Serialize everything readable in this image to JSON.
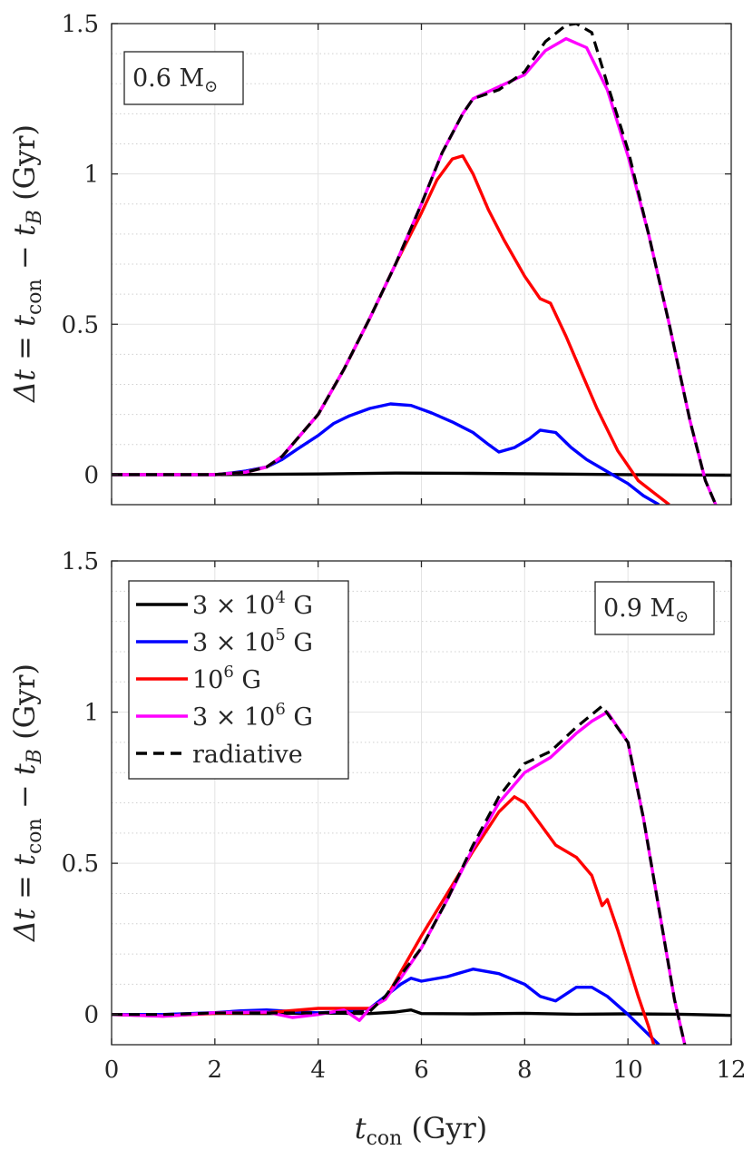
{
  "chart_data": {
    "type": "line",
    "shared": {
      "xlabel": "t_con (Gyr)",
      "xlabel_main": "t",
      "xlabel_sub": "con",
      "xlabel_unit": "(Gyr)",
      "ylabel": "Δt = t_con − t_B (Gyr)",
      "ylabel_parts": {
        "lhs": "Δt = t",
        "sub1": "con",
        "mid": " − t",
        "sub2": "B",
        "unit": " (Gyr)"
      },
      "xlim": [
        0,
        12
      ],
      "ylim": [
        -0.1,
        1.5
      ],
      "xticks": [
        0,
        2,
        4,
        6,
        8,
        10,
        12
      ],
      "xtick_labels": [
        "0",
        "2",
        "4",
        "6",
        "8",
        "10",
        "12"
      ],
      "yticks": [
        0,
        0.5,
        1,
        1.5
      ],
      "ytick_labels": [
        "0",
        "0.5",
        "1",
        "1.5"
      ],
      "minor_y_step": 0.1,
      "grid": true,
      "colors": {
        "3e4": "#000000",
        "3e5": "#0000ff",
        "1e6": "#ff0000",
        "3e6": "#ff00ff",
        "radiative": "#000000"
      }
    },
    "legend": {
      "placement": "top-left of bottom panel",
      "entries": [
        {
          "key": "3e4",
          "base": "3 × 10",
          "exp": "4",
          "unit": " G"
        },
        {
          "key": "3e5",
          "base": "3 × 10",
          "exp": "5",
          "unit": " G"
        },
        {
          "key": "1e6",
          "base": "10",
          "exp": "6",
          "unit": " G"
        },
        {
          "key": "3e6",
          "base": "3 × 10",
          "exp": "6",
          "unit": " G"
        },
        {
          "key": "radiative",
          "base": "radiative",
          "exp": "",
          "unit": "",
          "dashed": true
        }
      ]
    },
    "panels": [
      {
        "label": "0.6 M",
        "label_symbol": "⊙",
        "label_position": "top-left",
        "series": [
          {
            "key": "3e4",
            "name": "3 × 10^4 G",
            "x": [
              0,
              2,
              4,
              5.5,
              7,
              8.5,
              10,
              12
            ],
            "y": [
              0,
              0,
              0.002,
              0.005,
              0.004,
              0.002,
              0,
              -0.002
            ]
          },
          {
            "key": "3e5",
            "name": "3 × 10^5 G",
            "x": [
              0,
              1,
              2,
              2.3,
              2.6,
              3,
              3.3,
              3.6,
              4,
              4.3,
              4.6,
              5,
              5.4,
              5.8,
              6.2,
              6.6,
              7,
              7.3,
              7.5,
              7.8,
              8.1,
              8.3,
              8.6,
              8.9,
              9.2,
              9.6,
              10,
              10.3,
              10.6
            ],
            "y": [
              0,
              0,
              0,
              0.005,
              0.012,
              0.025,
              0.05,
              0.085,
              0.13,
              0.17,
              0.195,
              0.22,
              0.235,
              0.23,
              0.205,
              0.175,
              0.14,
              0.1,
              0.075,
              0.09,
              0.12,
              0.148,
              0.14,
              0.09,
              0.05,
              0.01,
              -0.03,
              -0.07,
              -0.1
            ]
          },
          {
            "key": "1e6",
            "name": "10^6 G",
            "x": [
              0,
              2,
              2.6,
              3,
              3.3,
              3.6,
              4,
              4.5,
              5,
              5.5,
              6,
              6.3,
              6.6,
              6.8,
              7,
              7.3,
              7.6,
              8,
              8.3,
              8.5,
              8.8,
              9.1,
              9.4,
              9.8,
              10.2,
              10.5,
              10.8
            ],
            "y": [
              0,
              0,
              0.008,
              0.025,
              0.06,
              0.12,
              0.2,
              0.35,
              0.52,
              0.7,
              0.87,
              0.98,
              1.05,
              1.06,
              1.0,
              0.88,
              0.78,
              0.66,
              0.585,
              0.57,
              0.46,
              0.34,
              0.22,
              0.08,
              -0.02,
              -0.06,
              -0.1
            ]
          },
          {
            "key": "3e6",
            "name": "3 × 10^6 G",
            "x": [
              0,
              2,
              2.6,
              3,
              3.3,
              3.6,
              4,
              4.5,
              5,
              5.5,
              6,
              6.4,
              6.8,
              7,
              7.5,
              8,
              8.4,
              8.8,
              9.2,
              9.6,
              10,
              10.4,
              10.8,
              11.2,
              11.5,
              11.7
            ],
            "y": [
              0,
              0,
              0.008,
              0.025,
              0.06,
              0.12,
              0.2,
              0.35,
              0.52,
              0.7,
              0.9,
              1.07,
              1.2,
              1.25,
              1.29,
              1.33,
              1.41,
              1.45,
              1.42,
              1.28,
              1.06,
              0.8,
              0.5,
              0.18,
              -0.02,
              -0.1
            ]
          },
          {
            "key": "radiative",
            "name": "radiative",
            "x": [
              0,
              2,
              2.6,
              3,
              3.3,
              3.6,
              4,
              4.5,
              5,
              5.5,
              6,
              6.4,
              6.8,
              7,
              7.5,
              8,
              8.4,
              8.8,
              9,
              9.3,
              9.6,
              10,
              10.4,
              10.8,
              11.2,
              11.5,
              11.7
            ],
            "y": [
              0,
              0,
              0.008,
              0.025,
              0.06,
              0.12,
              0.2,
              0.35,
              0.52,
              0.7,
              0.9,
              1.07,
              1.2,
              1.25,
              1.28,
              1.34,
              1.44,
              1.495,
              1.5,
              1.47,
              1.3,
              1.08,
              0.8,
              0.5,
              0.18,
              -0.02,
              -0.1
            ],
            "dashed": true
          }
        ]
      },
      {
        "label": "0.9 M",
        "label_symbol": "⊙",
        "label_position": "top-right",
        "series": [
          {
            "key": "3e4",
            "name": "3 × 10^4 G",
            "x": [
              0,
              1,
              2,
              3,
              4,
              5,
              5.5,
              5.8,
              6,
              7,
              8,
              9,
              10,
              11,
              12
            ],
            "y": [
              0,
              -0.002,
              0.004,
              0.003,
              0.005,
              0.003,
              0.008,
              0.015,
              0.003,
              0.002,
              0.004,
              0.001,
              0.002,
              0.001,
              -0.003
            ]
          },
          {
            "key": "3e5",
            "name": "3 × 10^5 G",
            "x": [
              0,
              1,
              1.5,
              2,
              2.5,
              3,
              3.5,
              4,
              4.5,
              5,
              5.3,
              5.6,
              5.8,
              6,
              6.5,
              7,
              7.5,
              8,
              8.3,
              8.6,
              9,
              9.3,
              9.6,
              10,
              10.3,
              10.6
            ],
            "y": [
              0,
              0,
              0.003,
              0.006,
              0.012,
              0.015,
              0.01,
              0.005,
              0.01,
              0.02,
              0.06,
              0.1,
              0.12,
              0.11,
              0.125,
              0.15,
              0.135,
              0.1,
              0.06,
              0.045,
              0.09,
              0.09,
              0.06,
              0.0,
              -0.05,
              -0.1
            ]
          },
          {
            "key": "1e6",
            "name": "10^6 G",
            "x": [
              0,
              1,
              2,
              3,
              4,
              5,
              5.3,
              5.6,
              6,
              6.5,
              7,
              7.5,
              7.8,
              8,
              8.3,
              8.6,
              9,
              9.3,
              9.5,
              9.6,
              9.8,
              10,
              10.2,
              10.4,
              10.5
            ],
            "y": [
              0,
              -0.005,
              0.004,
              0.006,
              0.02,
              0.02,
              0.05,
              0.14,
              0.26,
              0.4,
              0.54,
              0.67,
              0.72,
              0.7,
              0.63,
              0.56,
              0.52,
              0.46,
              0.36,
              0.38,
              0.28,
              0.17,
              0.06,
              -0.04,
              -0.1
            ]
          },
          {
            "key": "3e6",
            "name": "3 × 10^6 G",
            "x": [
              0,
              1,
              2,
              3,
              3.5,
              4,
              4.5,
              4.8,
              5,
              5.3,
              5.6,
              6,
              6.5,
              7,
              7.5,
              8,
              8.5,
              9,
              9.3,
              9.6,
              10,
              10.3,
              10.6,
              10.9,
              11.1
            ],
            "y": [
              0,
              -0.006,
              0.006,
              0.008,
              -0.01,
              0.0,
              0.015,
              -0.02,
              0.02,
              0.05,
              0.12,
              0.22,
              0.38,
              0.55,
              0.7,
              0.8,
              0.85,
              0.93,
              0.97,
              1.0,
              0.9,
              0.65,
              0.35,
              0.05,
              -0.1
            ]
          },
          {
            "key": "radiative",
            "name": "radiative",
            "x": [
              0,
              1,
              2,
              3,
              4,
              5,
              5.3,
              5.6,
              6,
              6.5,
              7,
              7.5,
              8,
              8.5,
              9,
              9.5,
              10,
              10.3,
              10.6,
              10.9,
              11.1
            ],
            "y": [
              0,
              0,
              0.005,
              0.005,
              0.005,
              0.01,
              0.06,
              0.13,
              0.22,
              0.38,
              0.56,
              0.72,
              0.83,
              0.87,
              0.95,
              1.02,
              0.9,
              0.65,
              0.35,
              0.05,
              -0.1
            ],
            "dashed": true
          }
        ]
      }
    ]
  }
}
